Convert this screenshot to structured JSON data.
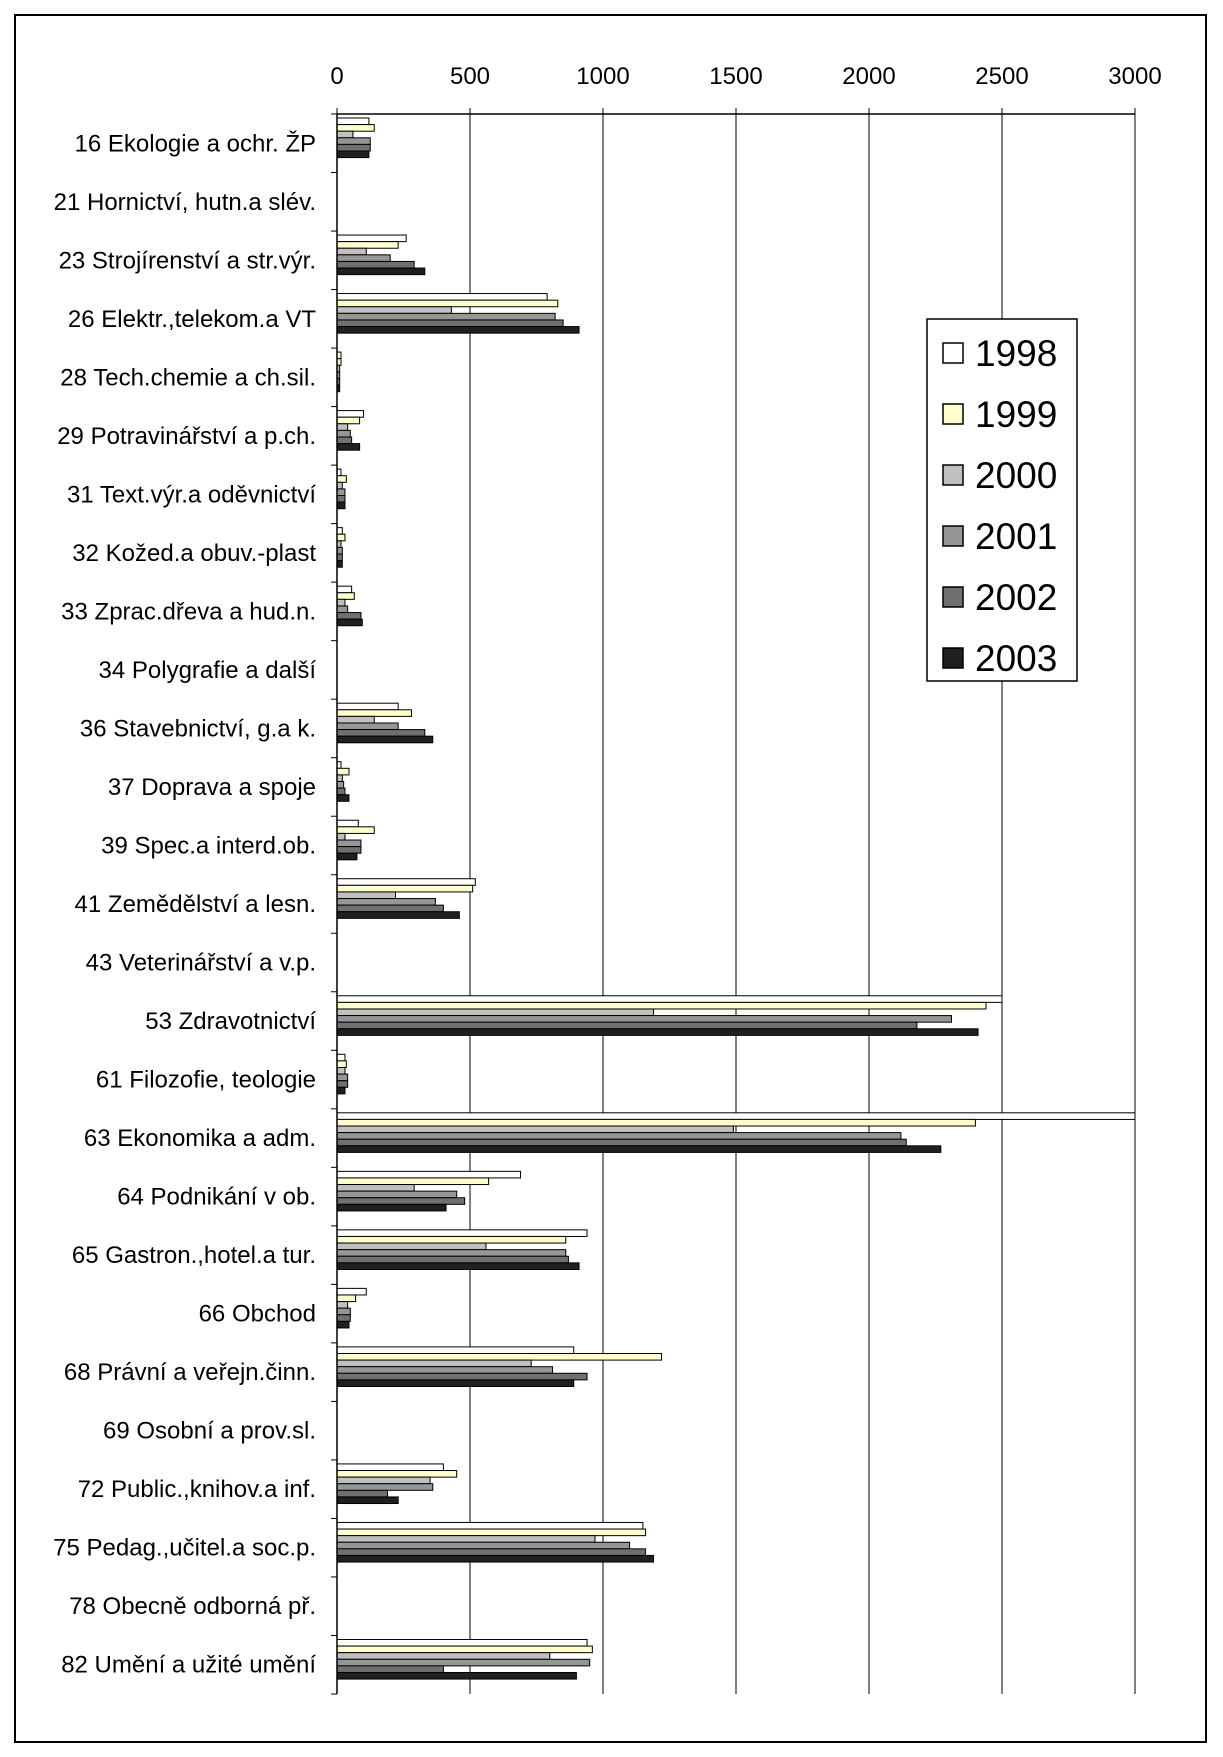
{
  "chart_data": {
    "type": "bar",
    "orientation": "horizontal",
    "title": "",
    "xlabel": "",
    "ylabel": "",
    "xlim": [
      0,
      3000
    ],
    "x_ticks": [
      0,
      500,
      1000,
      1500,
      2000,
      2500,
      3000
    ],
    "grid": true,
    "legend_position": "right",
    "categories": [
      "16 Ekologie a ochr. ŽP",
      "21 Hornictví, hutn.a slév.",
      "23 Strojírenství a str.výr.",
      "26 Elektr.,telekom.a VT",
      "28 Tech.chemie a ch.sil.",
      "29 Potravinářství a p.ch.",
      "31 Text.výr.a oděvnictví",
      "32 Kožed.a obuv.-plast",
      "33 Zprac.dřeva a hud.n.",
      "34 Polygrafie a další",
      "36 Stavebnictví, g.a k.",
      "37 Doprava a spoje",
      "39 Spec.a interd.ob.",
      "41 Zemědělství a lesn.",
      "43 Veterinářství a v.p.",
      "53 Zdravotnictví",
      "61 Filozofie, teologie",
      "63 Ekonomika a adm.",
      "64 Podnikání v ob.",
      "65 Gastron.,hotel.a tur.",
      "66 Obchod",
      "68 Právní a veřejn.činn.",
      "69 Osobní a prov.sl.",
      "72 Public.,knihov.a inf.",
      "75 Pedag.,učitel.a soc.p.",
      "78 Obecně odborná př.",
      "82 Umění a užité umění"
    ],
    "series": [
      {
        "name": "1998",
        "color": "#ffffff",
        "values": [
          120,
          0,
          260,
          790,
          15,
          100,
          15,
          20,
          55,
          0,
          230,
          15,
          80,
          520,
          0,
          2500,
          30,
          3000,
          690,
          940,
          110,
          890,
          0,
          400,
          1150,
          0,
          940
        ]
      },
      {
        "name": "1999",
        "color": "#ffffcc",
        "values": [
          140,
          0,
          230,
          830,
          15,
          85,
          35,
          30,
          65,
          0,
          280,
          45,
          140,
          510,
          0,
          2440,
          35,
          2400,
          570,
          860,
          70,
          1220,
          0,
          450,
          1160,
          0,
          960
        ]
      },
      {
        "name": "2000",
        "color": "#c0c0c0",
        "values": [
          60,
          0,
          110,
          430,
          10,
          40,
          20,
          15,
          30,
          0,
          140,
          20,
          30,
          220,
          0,
          1190,
          30,
          1490,
          290,
          560,
          40,
          730,
          0,
          350,
          970,
          0,
          800
        ]
      },
      {
        "name": "2001",
        "color": "#969696",
        "values": [
          125,
          0,
          200,
          820,
          10,
          50,
          30,
          20,
          40,
          0,
          230,
          25,
          90,
          370,
          0,
          2310,
          40,
          2120,
          450,
          860,
          50,
          810,
          0,
          360,
          1100,
          0,
          950
        ]
      },
      {
        "name": "2002",
        "color": "#707070",
        "values": [
          125,
          0,
          290,
          850,
          10,
          55,
          30,
          20,
          90,
          0,
          330,
          30,
          90,
          400,
          0,
          2180,
          40,
          2140,
          480,
          870,
          50,
          940,
          0,
          190,
          1160,
          0,
          400
        ]
      },
      {
        "name": "2003",
        "color": "#202020",
        "values": [
          120,
          0,
          330,
          910,
          10,
          85,
          30,
          20,
          95,
          0,
          360,
          45,
          75,
          460,
          0,
          2410,
          30,
          2270,
          410,
          910,
          45,
          890,
          0,
          230,
          1190,
          0,
          900
        ]
      }
    ]
  }
}
